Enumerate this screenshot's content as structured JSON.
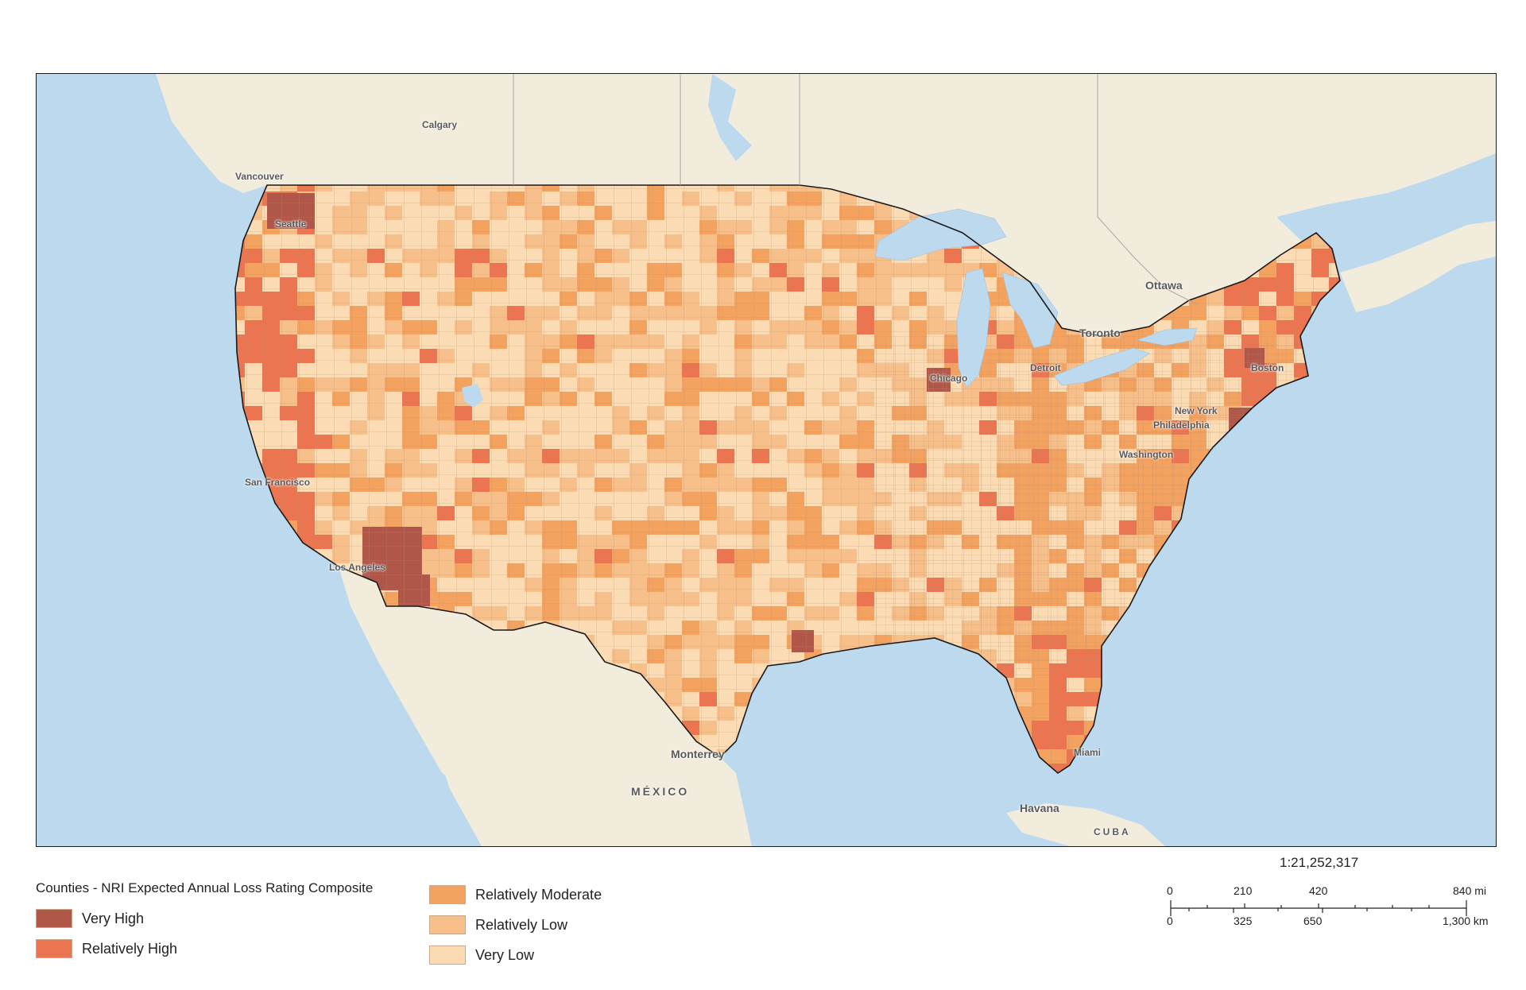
{
  "map": {
    "type": "choropleth",
    "subject": "Counties - NRI Expected Annual Loss Rating Composite",
    "colors": {
      "water": "#bcd9ee",
      "land": "#f2ecdc",
      "very_high": "#b0574a",
      "relatively_high": "#eb7550",
      "relatively_moderate": "#f3a260",
      "relatively_low": "#f7bf8a",
      "very_low": "#fbdcb4",
      "county_border": "#b88a6e",
      "national_border": "#1a1a1a"
    },
    "place_labels": [
      {
        "text": "Calgary"
      },
      {
        "text": "Vancouver"
      },
      {
        "text": "Ottawa"
      },
      {
        "text": "Toronto"
      },
      {
        "text": "San Francisco"
      },
      {
        "text": "Los Angeles"
      },
      {
        "text": "Chicago"
      },
      {
        "text": "Detroit"
      },
      {
        "text": "Boston"
      },
      {
        "text": "New York"
      },
      {
        "text": "Philadelphia"
      },
      {
        "text": "Washington"
      },
      {
        "text": "Seattle"
      },
      {
        "text": "Miami"
      },
      {
        "text": "Monterrey"
      },
      {
        "text": "MÉXICO"
      },
      {
        "text": "Havana"
      },
      {
        "text": "CUBA"
      }
    ]
  },
  "legend": {
    "title": "Counties - NRI Expected Annual Loss Rating Composite",
    "items": [
      {
        "label": "Very High",
        "color": "#b0574a"
      },
      {
        "label": "Relatively High",
        "color": "#eb7550"
      },
      {
        "label": "Relatively Moderate",
        "color": "#f3a260"
      },
      {
        "label": "Relatively Low",
        "color": "#f7bf8a"
      },
      {
        "label": "Very Low",
        "color": "#fbdcb4"
      }
    ]
  },
  "scale": {
    "ratio": "1:21,252,317",
    "miles": {
      "ticks": [
        "0",
        "210",
        "420",
        "840 mi"
      ]
    },
    "km": {
      "ticks": [
        "0",
        "325",
        "650",
        "1,300 km"
      ]
    }
  }
}
